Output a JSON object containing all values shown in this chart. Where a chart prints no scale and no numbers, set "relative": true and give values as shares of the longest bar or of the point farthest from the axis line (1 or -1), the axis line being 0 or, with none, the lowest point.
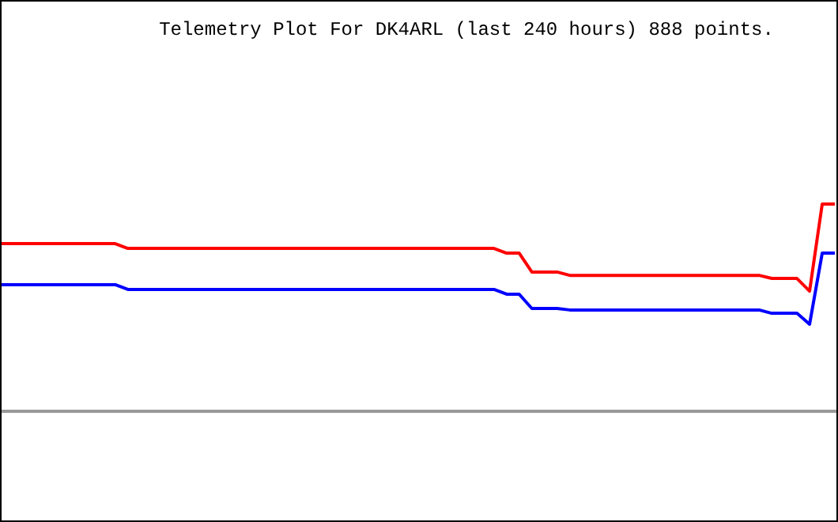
{
  "chart_data": {
    "type": "line",
    "title": "Telemetry Plot For DK4ARL (last 240 hours) 888 points.",
    "relative": true,
    "categories": [
      null,
      null,
      null,
      null,
      null,
      null,
      null,
      null,
      null,
      null,
      null,
      null,
      null,
      null,
      null,
      null,
      null,
      null,
      null,
      null,
      null,
      null,
      null,
      null,
      null,
      null,
      null,
      null,
      null,
      null,
      null,
      null,
      null,
      null,
      null,
      null,
      null,
      null,
      null,
      null,
      null,
      null,
      null,
      null,
      null,
      null,
      null,
      null,
      null,
      null,
      null,
      null,
      null,
      null,
      null,
      null,
      null,
      null,
      null,
      null,
      null,
      null,
      null,
      null,
      null,
      null,
      null
    ],
    "series": [
      {
        "color": "#ff0000",
        "values": [
          0.809,
          0.809,
          0.809,
          0.809,
          0.809,
          0.809,
          0.809,
          0.809,
          0.809,
          0.809,
          0.786,
          0.786,
          0.786,
          0.786,
          0.786,
          0.786,
          0.786,
          0.786,
          0.786,
          0.786,
          0.786,
          0.786,
          0.786,
          0.786,
          0.786,
          0.786,
          0.786,
          0.786,
          0.786,
          0.786,
          0.786,
          0.786,
          0.786,
          0.786,
          0.786,
          0.786,
          0.786,
          0.786,
          0.786,
          0.786,
          0.763,
          0.763,
          0.672,
          0.672,
          0.672,
          0.656,
          0.656,
          0.656,
          0.656,
          0.656,
          0.656,
          0.656,
          0.656,
          0.656,
          0.656,
          0.656,
          0.656,
          0.656,
          0.656,
          0.656,
          0.656,
          0.641,
          0.641,
          0.641,
          0.58,
          1,
          1
        ]
      },
      {
        "color": "#0000ff",
        "values": [
          0.611,
          0.611,
          0.611,
          0.611,
          0.611,
          0.611,
          0.611,
          0.611,
          0.611,
          0.611,
          0.588,
          0.588,
          0.588,
          0.588,
          0.588,
          0.588,
          0.588,
          0.588,
          0.588,
          0.588,
          0.588,
          0.588,
          0.588,
          0.588,
          0.588,
          0.588,
          0.588,
          0.588,
          0.588,
          0.588,
          0.588,
          0.588,
          0.588,
          0.588,
          0.588,
          0.588,
          0.588,
          0.588,
          0.588,
          0.588,
          0.565,
          0.565,
          0.496,
          0.496,
          0.496,
          0.489,
          0.489,
          0.489,
          0.489,
          0.489,
          0.489,
          0.489,
          0.489,
          0.489,
          0.489,
          0.489,
          0.489,
          0.489,
          0.489,
          0.489,
          0.489,
          0.473,
          0.473,
          0.473,
          0.42,
          0.763,
          0.763
        ]
      }
    ]
  }
}
